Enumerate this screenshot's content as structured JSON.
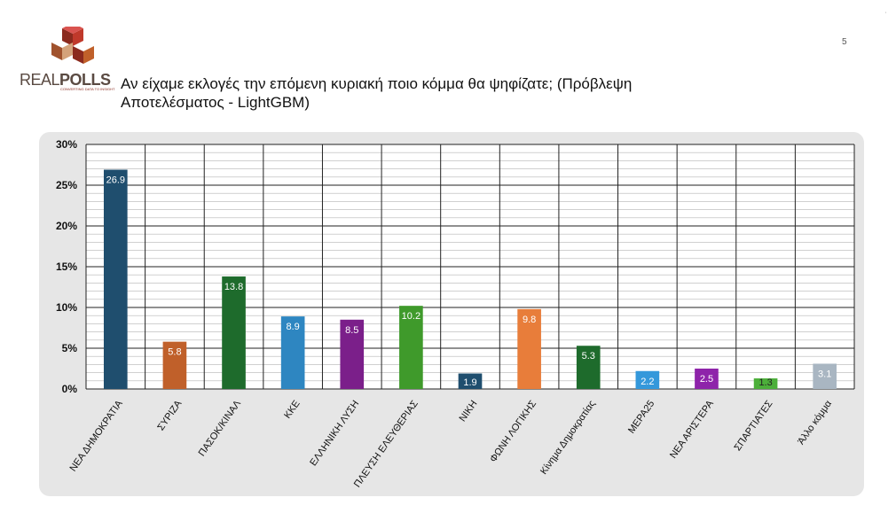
{
  "brand": {
    "name_part1": "REAL",
    "name_part2": "POLLS",
    "tagline": "CONVERTING DATA TO INSIGHT",
    "colors": [
      "#8b2a1e",
      "#c0392b",
      "#a0522d",
      "#d4a27a"
    ]
  },
  "slide": {
    "title": "Αν είχαμε εκλογές την επόμενη κυριακή ποιο κόμμα θα ψηφίζατε; (Πρόβλεψη Αποτελέσματος - LightGBM)",
    "page_number": "5",
    "corner_mark": "'"
  },
  "chart_data": {
    "type": "bar",
    "categories": [
      "ΝΕΑ ΔΗΜΟΚΡΑΤΙΑ",
      "ΣΥΡΙΖΑ",
      "ΠΑΣΟΚ/ΚΙΝΑΛ",
      "ΚΚΕ",
      "ΕΛΛΗΝΙΚΗ ΛΥΣΗ",
      "ΠΛΕΥΣΗ ΕΛΕΥΘΕΡΙΑΣ",
      "ΝΙΚΗ",
      "ΦΩΝΗ ΛΟΓΙΚΗΣ",
      "Κίνημα Δημοκρατίας",
      "ΜΕΡΑ25",
      "ΝΕΑ ΑΡΙΣΤΕΡΑ",
      "ΣΠΑΡΤΙΑΤΕΣ",
      "Άλλο κόμμα"
    ],
    "values": [
      26.9,
      5.8,
      13.8,
      8.9,
      8.5,
      10.2,
      1.9,
      9.8,
      5.3,
      2.2,
      2.5,
      1.3,
      3.1
    ],
    "data_labels": [
      "26.9",
      "5.8",
      "13.8",
      "8.9",
      "8.5",
      "10.2",
      "1.9",
      "9.8",
      "5.3",
      "2.2",
      "2.5",
      "1.3",
      "3.1"
    ],
    "colors": [
      "#1f4e6e",
      "#c0602a",
      "#1e6b2c",
      "#2e86c1",
      "#7b1f8a",
      "#3f9a2b",
      "#1f4e6e",
      "#e87d3a",
      "#1e6b2c",
      "#3498db",
      "#8e24aa",
      "#4caf3a",
      "#a9b6c2"
    ],
    "y_ticks": [
      "0%",
      "5%",
      "10%",
      "15%",
      "20%",
      "25%",
      "30%"
    ],
    "ylim": [
      0,
      30
    ],
    "grid": true,
    "legend": "none"
  }
}
